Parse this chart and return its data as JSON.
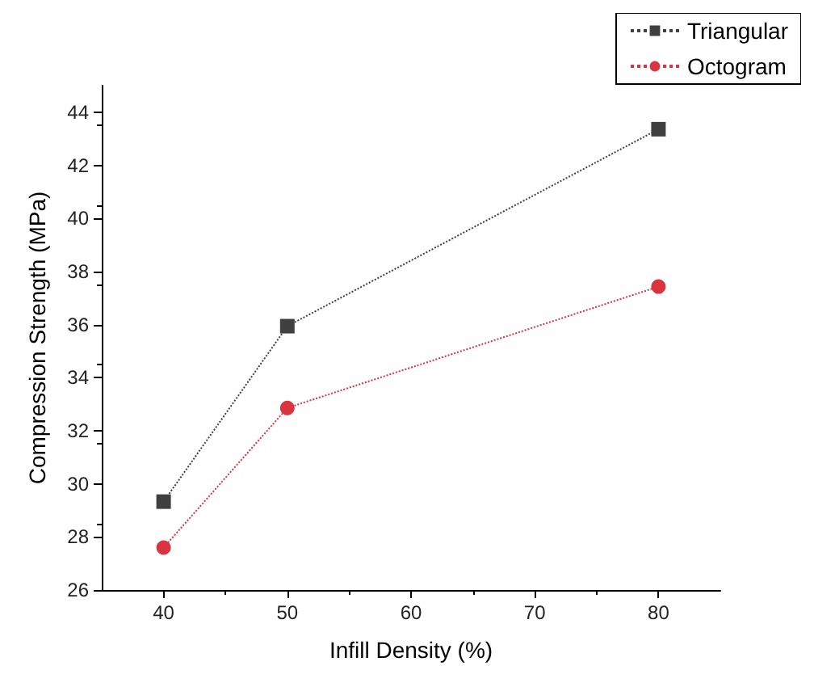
{
  "chart_data": {
    "type": "line",
    "xlabel": "Infill Density (%)",
    "ylabel": "Compression Strength (MPa)",
    "x": [
      40,
      50,
      80
    ],
    "series": [
      {
        "name": "Triangular",
        "color": "#404040",
        "marker": "square",
        "values": [
          29.33,
          35.94,
          43.36
        ]
      },
      {
        "name": "Octogram",
        "color": "#d9343f",
        "marker": "circle",
        "values": [
          27.6,
          32.86,
          37.43
        ]
      }
    ],
    "xlim": [
      35,
      85
    ],
    "xticks": [
      40,
      50,
      60,
      70,
      80
    ],
    "ylim": [
      26,
      45
    ],
    "yticks": [
      26,
      28,
      30,
      32,
      34,
      36,
      38,
      40,
      42,
      44
    ],
    "legend": "top right",
    "grid": false,
    "line_style": "dotted"
  }
}
